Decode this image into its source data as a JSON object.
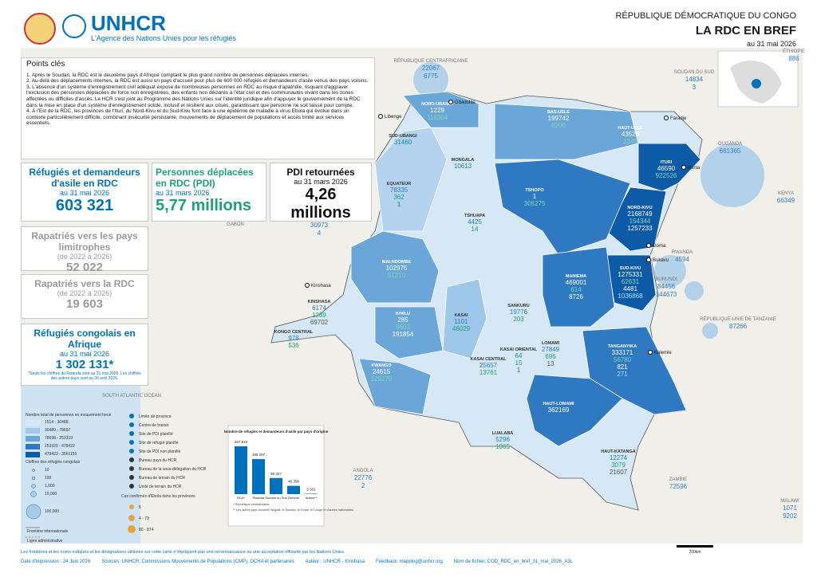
{
  "header": {
    "org": "UNHCR",
    "tagline": "L'Agence des Nations Unies pour les réfugiés",
    "country": "RÉPUBLIQUE DÉMOCRATIQUE DU CONGO",
    "title": "LA RDC EN BREF",
    "date": "au 31 mai 2026"
  },
  "key_points": {
    "title": "Points clés",
    "items": [
      "1. Après le Soudan, la RDC est le deuxième pays d'Afrique comptant le plus grand nombre de personnes déplacées internes.",
      "2. Au-delà des déplacements internes, la RDC est aussi un pays d'accueil pour plus de 600 000 réfugiés et demandeurs d'asile venus des pays voisins.",
      "3. L'absence d'un système d'enregistrement civil adéquat expose de nombreuses personnes en RDC au risque d'apatridie, risquant d'aggraver l'exclusion des personnes déplacées de force non enregistrées, des enfants non déclarés à l'état civil et des communautés vivant dans les zones affectées ou difficiles d'accès. Le HCR s'est joint au Programme des Nations Unies sur l'identité juridique afin d'appuyer le gouvernement de la RDC dans la mise en place d'un système d'enregistrement solide, inclusif et résilient aux crises, garantissant que personne ne soit laissé pour compte.",
      "4. À l'Est de la RDC, les provinces de l'Ituri, du Nord-Kivu et du Sud-Kivu font face à une épidémie de maladie à virus Ebola qui évolue dans un contexte particulièrement difficile, combinant insécurité persistante, mouvements de déplacement de populations et accès limité aux services essentiels."
    ]
  },
  "stats": [
    {
      "title": "Réfugiés et demandeurs d'asile en RDC",
      "date": "au 31 mai 2026",
      "value": "603 321"
    },
    {
      "title": "Personnes déplacées en RDC (PDI)",
      "date": "au 31 mars 2026",
      "value": "5,77 millions"
    },
    {
      "title": "PDI retournées",
      "date": "au 31 mars 2026",
      "value": "4,26 millions"
    },
    {
      "title": "Rapatriés vers les pays limitrophes",
      "date": "(de 2022 à 2026)",
      "value": "52 022"
    },
    {
      "title": "Rapatriés vers la RDC",
      "date": "(de 2022 à 2026)",
      "value": "19 603"
    },
    {
      "title": "Réfugiés congolais en Afrique",
      "date": "au 31 mai 2026",
      "value": "1 302 131*",
      "note": "*Seuls les chiffres du Rwanda sont au 31 mai 2026. Les chiffres des autres pays sont au 30 avril 2026."
    }
  ],
  "provinces": [
    {
      "name": "NORD-UBANGI",
      "values": [
        "1229",
        "116364"
      ]
    },
    {
      "name": "SUD-UBANGI",
      "values": [
        "31460"
      ]
    },
    {
      "name": "BAS-UELE",
      "values": [
        "199742",
        "6206"
      ]
    },
    {
      "name": "HAUT-UELE",
      "values": [
        "43528",
        "2245"
      ]
    },
    {
      "name": "MONGALA",
      "values": [
        "10613"
      ]
    },
    {
      "name": "EQUATEUR",
      "values": [
        "78335",
        "362",
        "1"
      ]
    },
    {
      "name": "TSHOPO",
      "values": [
        "1",
        "306275"
      ]
    },
    {
      "name": "ITURI",
      "values": [
        "46590",
        "922526"
      ]
    },
    {
      "name": "NORD-KIVU",
      "values": [
        "2168749",
        "154344",
        "1257233"
      ]
    },
    {
      "name": "TSHUAPA",
      "values": [
        "4425",
        "14"
      ]
    },
    {
      "name": "MAI-NDOMBE",
      "values": [
        "102975",
        "51210"
      ]
    },
    {
      "name": "SUD-KIVU",
      "values": [
        "1275331",
        "62631",
        "4481",
        "1036868"
      ]
    },
    {
      "name": "MANIEMA",
      "values": [
        "469001",
        "614",
        "8726"
      ]
    },
    {
      "name": "SANKURU",
      "values": [
        "19776",
        "203"
      ]
    },
    {
      "name": "KWILU",
      "values": [
        "285",
        "9603",
        "191854"
      ]
    },
    {
      "name": "KASAI",
      "values": [
        "1101",
        "46029"
      ]
    },
    {
      "name": "KONGO CENTRAL",
      "values": [
        "978",
        "536"
      ]
    },
    {
      "name": "KINSHASA",
      "values": [
        "6174",
        "1289",
        "69702"
      ]
    },
    {
      "name": "KWANGO",
      "values": [
        "24615",
        "129270"
      ]
    },
    {
      "name": "KASAI ORIENTAL",
      "values": [
        "64",
        "15",
        "1"
      ]
    },
    {
      "name": "KASAI CENTRAL",
      "values": [
        "25657",
        "13761"
      ]
    },
    {
      "name": "LOMAMI",
      "values": [
        "27849",
        "696",
        "13"
      ]
    },
    {
      "name": "TANGANYIKA",
      "values": [
        "333171",
        "56780",
        "821",
        "271"
      ]
    },
    {
      "name": "HAUT-LOMAMI",
      "values": [
        "362169"
      ]
    },
    {
      "name": "LUALABA",
      "values": [
        "5296",
        "1065"
      ]
    },
    {
      "name": "HAUT-KATANGA",
      "values": [
        "12274",
        "3079",
        "21607"
      ]
    }
  ],
  "neighbors": [
    {
      "name": "RÉPUBLIQUE CENTRAFRICAINE",
      "values": [
        "22067",
        "6775"
      ]
    },
    {
      "name": "SOUDAN DU SUD",
      "values": [
        "14834",
        "3"
      ]
    },
    {
      "name": "OUGANDA",
      "values": [
        "661365"
      ]
    },
    {
      "name": "KENYA",
      "values": [
        "66349"
      ]
    },
    {
      "name": "RWANDA",
      "values": [
        "4594"
      ]
    },
    {
      "name": "BURUNDI",
      "values": [
        "84456",
        "144673"
      ]
    },
    {
      "name": "RÉPUBLIQUE-UNIE DE TANZANIE",
      "values": [
        "87266"
      ]
    },
    {
      "name": "ZAMBIE",
      "values": [
        "72596"
      ]
    },
    {
      "name": "ANGOLA",
      "values": [
        "22776",
        "2"
      ]
    },
    {
      "name": "MALAWI",
      "values": [
        "1071",
        "9202"
      ]
    },
    {
      "name": "RÉPUBLIQUE DU CONGO",
      "values": [
        "30973",
        "4"
      ]
    },
    {
      "name": "GABON",
      "values": []
    },
    {
      "name": "SOUTH ATLANTIC OCEAN",
      "values": []
    },
    {
      "name": "ÉTHIOPIE",
      "values": [
        "886"
      ]
    }
  ],
  "cities": [
    "Gbadolite",
    "Libenge",
    "Faradje",
    "Bunia",
    "Goma",
    "Bukavu",
    "Kalemie",
    "Kinshasa"
  ],
  "legend": {
    "title": "Nombre total de personnes en mouvement forcé",
    "ranges": [
      "1514 - 30488",
      "30489 - 78697",
      "78698 - 253319",
      "253320 - 478422",
      "478423 - 3561155"
    ],
    "refugee_title": "Chiffres des réfugiés congolais",
    "refugee_sizes": [
      "10",
      "100",
      "1,000",
      "10,000",
      "100,000"
    ],
    "symbols": [
      "Limite de province",
      "Centre de transit",
      "Site de PDI planifié",
      "Site de réfugié planifié",
      "Site de PDI non planifié",
      "Bureau pays du HCR",
      "Bureau de la sous-délégation du HCR",
      "Bureau de terrain du HCR",
      "Unité de terrain du HCR"
    ],
    "ebola_title": "Cas confirmés d'Ebola dans les provinces",
    "ebola": [
      "5",
      "4 - 79",
      "80 - 874"
    ],
    "lines": [
      "Frontière internationale",
      "Ligne administrative"
    ]
  },
  "chart_data": {
    "type": "bar",
    "title": "Nombre de réfugiés et demandeurs d'asile par pays d'origine",
    "categories": [
      "RCA*",
      "Rwanda",
      "Soudan du Sud",
      "Burundi",
      "Autres**"
    ],
    "values": [
      267919,
      196207,
      90327,
      46358,
      2331
    ],
    "value_labels": [
      "267 919",
      "196 207",
      "90 327",
      "46 358",
      "2 331"
    ],
    "color": "#0072bc",
    "notes": [
      "* République centrafricaine",
      "** Les autres pays incluent l'Angola, le Soudan, le Tchad, le Congo et d'autres nationalités"
    ]
  },
  "scale": "200km",
  "footer": {
    "disclaimer": "Les frontières et les noms indiqués et les désignations utilisées sur cette carte n'impliquent pas une reconnaissance ou une acceptation officielle par les Nations Unies.",
    "printed": "Date d'impression : 24 Juin 2026",
    "sources": "Sources: UNHCR, Commissions Mouvements de Populations (CMP), OCHA et partenaires",
    "author": "Auteur : UNHCR - Kinshasa",
    "feedback": "Feedback: mapping@unhcr.org",
    "file": "Nom de fichier: COD_RDC_en_bref_31_mai_2026_A3L"
  }
}
